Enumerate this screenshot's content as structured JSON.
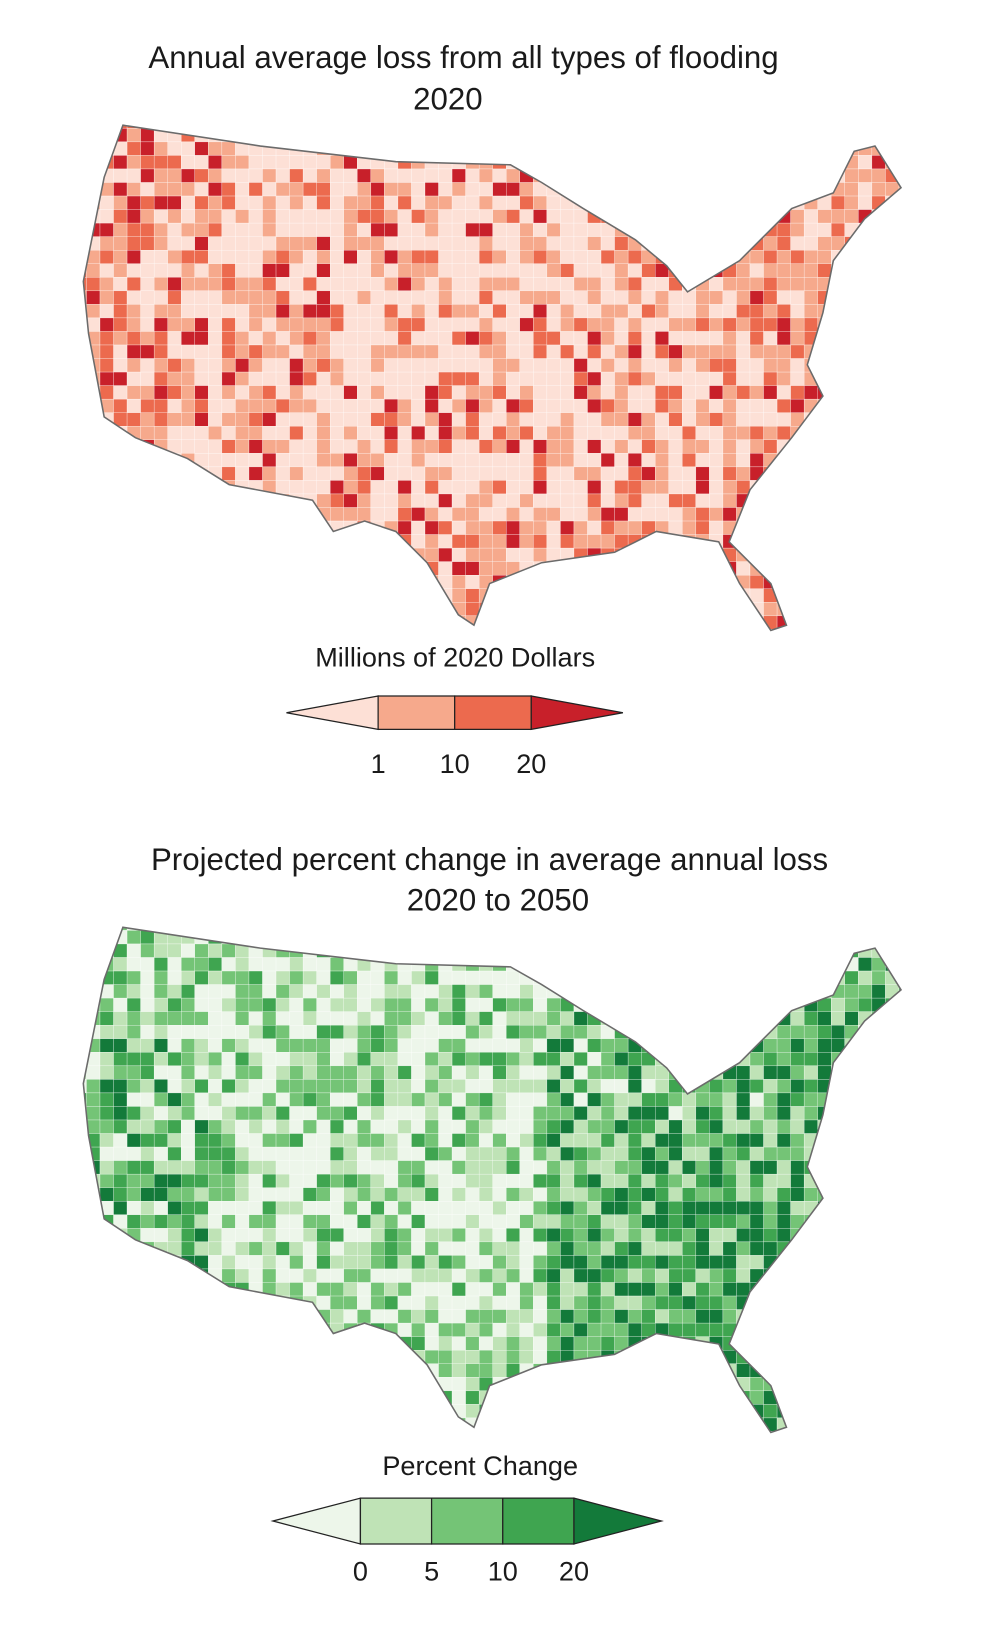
{
  "maps": [
    {
      "title": "Annual average loss from all types of flooding",
      "subtitle": "2020",
      "legend": {
        "title": "Millions of 2020 Dollars",
        "colors": [
          "#fde0d6",
          "#f6a98c",
          "#ec6a4e",
          "#c8202a"
        ],
        "ticks": [
          1,
          10,
          20
        ]
      }
    },
    {
      "title": "Projected percent change in average annual loss",
      "subtitle": "2020 to 2050",
      "legend": {
        "title": "Percent Change",
        "colors": [
          "#edf6ea",
          "#bfe3b6",
          "#74c476",
          "#3fa550",
          "#137a3a"
        ],
        "ticks": [
          0,
          5,
          10,
          20
        ]
      }
    }
  ]
}
